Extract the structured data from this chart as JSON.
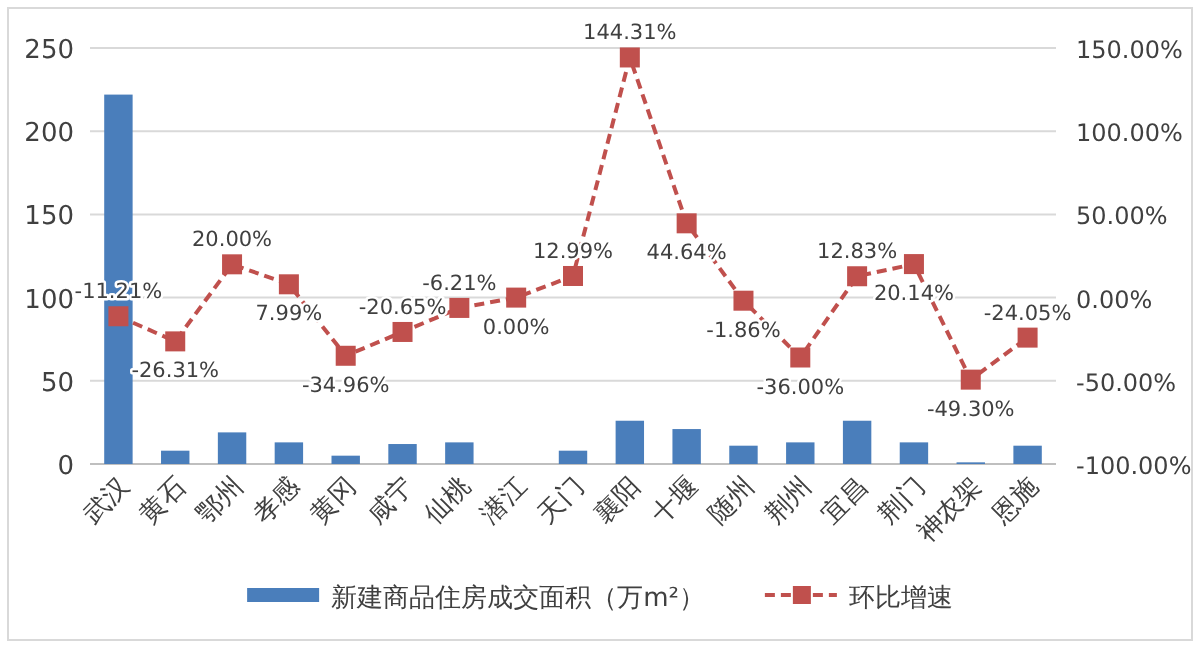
{
  "chart_data": {
    "type": "bar",
    "categories": [
      "武汉",
      "黄石",
      "鄂州",
      "孝感",
      "黄冈",
      "咸宁",
      "仙桃",
      "潜江",
      "天门",
      "襄阳",
      "十堰",
      "随州",
      "荆州",
      "宜昌",
      "荆门",
      "神农架",
      "恩施"
    ],
    "series": [
      {
        "name": "新建商品住房成交面积（万m²）",
        "color": "#4a7ebb",
        "values": [
          222,
          8,
          19,
          13,
          5,
          12,
          13,
          0,
          8,
          26,
          21,
          11,
          13,
          26,
          13,
          1,
          11
        ]
      },
      {
        "name": "环比增速",
        "type": "line",
        "axis": "y2",
        "color": "#c0504d",
        "marker": "square",
        "line_style": "dashed",
        "values": [
          -11.21,
          -26.31,
          20.0,
          7.99,
          -34.96,
          -20.65,
          -6.21,
          0.0,
          12.99,
          144.31,
          44.64,
          -1.86,
          -36.0,
          12.83,
          20.14,
          -49.3,
          -24.05
        ],
        "value_labels": [
          "-11.21%",
          "-26.31%",
          "20.00%",
          "7.99%",
          "-34.96%",
          "-20.65%",
          "-6.21%",
          "0.00%",
          "12.99%",
          "144.31%",
          "44.64%",
          "-1.86%",
          "-36.00%",
          "12.83%",
          "20.14%",
          "-49.30%",
          "-24.05%"
        ]
      }
    ],
    "ylim": [
      0,
      250
    ],
    "yticks": [
      0,
      50,
      100,
      150,
      200,
      250
    ],
    "y2lim": [
      -100,
      150
    ],
    "y2ticks": [
      {
        "value": -100,
        "label": "-100.00%"
      },
      {
        "value": -50,
        "label": "-50.00%"
      },
      {
        "value": 0,
        "label": "0.00%"
      },
      {
        "value": 50,
        "label": "50.00%"
      },
      {
        "value": 100,
        "label": "100.00%"
      },
      {
        "value": 150,
        "label": "150.00%"
      }
    ],
    "grid": "y",
    "legend": "bottom"
  }
}
